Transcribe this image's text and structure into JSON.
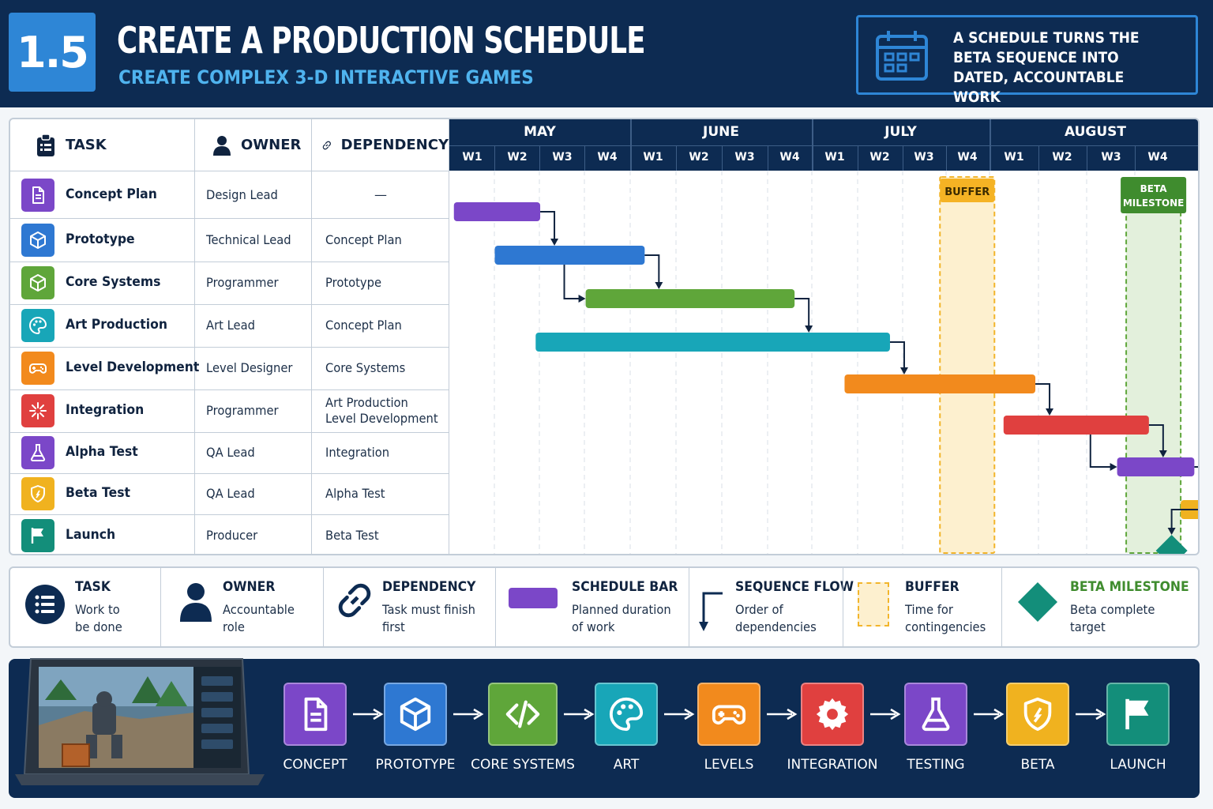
{
  "header": {
    "badge": "1.5",
    "title": "CREATE A PRODUCTION SCHEDULE",
    "subtitle": "CREATE COMPLEX 3-D INTERACTIVE GAMES",
    "note_line1": "A SCHEDULE TURNS THE",
    "note_line2": "BETA SEQUENCE INTO",
    "note_line3": "DATED, ACCOUNTABLE WORK",
    "note_icon": "calendar-icon"
  },
  "columns": {
    "task": "TASK",
    "owner": "OWNER",
    "dependency": "DEPENDENCY"
  },
  "months": [
    "MAY",
    "JUNE",
    "JULY",
    "AUGUST"
  ],
  "weeks": [
    "W1",
    "W2",
    "W3",
    "W4"
  ],
  "tasks": [
    {
      "name": "Concept Plan",
      "owner": "Design Lead",
      "dep1": "—",
      "dep2": "",
      "color": "#7b47c8",
      "icon": "document-icon"
    },
    {
      "name": "Prototype",
      "owner": "Technical Lead",
      "dep1": "Concept Plan",
      "dep2": "",
      "color": "#2e78d2",
      "icon": "cube-icon"
    },
    {
      "name": "Core Systems",
      "owner": "Programmer",
      "dep1": "Prototype",
      "dep2": "",
      "color": "#5fa63a",
      "icon": "cube-icon"
    },
    {
      "name": "Art Production",
      "owner": "Art Lead",
      "dep1": "Concept Plan",
      "dep2": "",
      "color": "#18a6b8",
      "icon": "palette-icon"
    },
    {
      "name": "Level Development",
      "owner": "Level Designer",
      "dep1": "Core Systems",
      "dep2": "",
      "color": "#f28a1d",
      "icon": "gamepad-icon"
    },
    {
      "name": "Integration",
      "owner": "Programmer",
      "dep1": "Art Production",
      "dep2": "Level Development",
      "color": "#e0403f",
      "icon": "spark-icon"
    },
    {
      "name": "Alpha Test",
      "owner": "QA Lead",
      "dep1": "Integration",
      "dep2": "",
      "color": "#7b47c8",
      "icon": "flask-icon"
    },
    {
      "name": "Beta Test",
      "owner": "QA Lead",
      "dep1": "Alpha Test",
      "dep2": "",
      "color": "#f0b21f",
      "icon": "shield-icon"
    },
    {
      "name": "Launch",
      "owner": "Producer",
      "dep1": "Beta Test",
      "dep2": "",
      "color": "#138e7a",
      "icon": "flag-icon"
    }
  ],
  "chart_data": {
    "type": "gantt",
    "time_unit": "week",
    "axis": [
      "May W1",
      "May W2",
      "May W3",
      "May W4",
      "June W1",
      "June W2",
      "June W3",
      "June W4",
      "July W1",
      "July W2",
      "July W3",
      "July W4",
      "August W1",
      "August W2",
      "August W3",
      "August W4"
    ],
    "bars": [
      {
        "task": "Concept Plan",
        "start_week": 1.1,
        "end_week": 3.0
      },
      {
        "task": "Prototype",
        "start_week": 2.0,
        "end_week": 5.3
      },
      {
        "task": "Core Systems",
        "start_week": 4.0,
        "end_week": 8.6
      },
      {
        "task": "Art Production",
        "start_week": 2.9,
        "end_week": 10.7
      },
      {
        "task": "Level Development",
        "start_week": 9.7,
        "end_week": 13.9
      },
      {
        "task": "Integration",
        "start_week": 13.2,
        "end_week": 16.4
      },
      {
        "task": "Alpha Test",
        "start_week": 15.7,
        "end_week": 17.4
      },
      {
        "task": "Beta Test",
        "start_week": 17.1,
        "end_week": 18.6
      }
    ],
    "buffer": {
      "label": "BUFFER",
      "start_week": 11.8,
      "end_week": 13.0
    },
    "milestone": {
      "label_line1": "BETA",
      "label_line2": "MILESTONE",
      "start_week": 15.9,
      "end_week": 17.1,
      "diamond_week": 16.9
    }
  },
  "legend": [
    {
      "title": "TASK",
      "desc1": "Work to",
      "desc2": "be done",
      "icon": "list-icon"
    },
    {
      "title": "OWNER",
      "desc1": "Accountable",
      "desc2": "role",
      "icon": "person-icon"
    },
    {
      "title": "DEPENDENCY",
      "desc1": "Task must finish",
      "desc2": "first",
      "icon": "link-icon"
    },
    {
      "title": "SCHEDULE BAR",
      "desc1": "Planned duration",
      "desc2": "of work",
      "icon": "bar-icon"
    },
    {
      "title": "SEQUENCE FLOW",
      "desc1": "Order of",
      "desc2": "dependencies",
      "icon": "elbow-arrow-icon"
    },
    {
      "title": "BUFFER",
      "desc1": "Time for",
      "desc2": "contingencies",
      "icon": "buffer-icon"
    },
    {
      "title": "BETA MILESTONE",
      "desc1": "Beta complete",
      "desc2": "target",
      "icon": "diamond-icon"
    }
  ],
  "flow": [
    {
      "label": "CONCEPT",
      "color": "#7b47c8",
      "icon": "document-icon"
    },
    {
      "label": "PROTOTYPE",
      "color": "#2e78d2",
      "icon": "cube-icon"
    },
    {
      "label": "CORE SYSTEMS",
      "color": "#5fa63a",
      "icon": "code-icon"
    },
    {
      "label": "ART",
      "color": "#18a6b8",
      "icon": "palette-icon"
    },
    {
      "label": "LEVELS",
      "color": "#f28a1d",
      "icon": "gamepad-icon"
    },
    {
      "label": "INTEGRATION",
      "color": "#e0403f",
      "icon": "gear-icon"
    },
    {
      "label": "TESTING",
      "color": "#7b47c8",
      "icon": "flask-icon"
    },
    {
      "label": "BETA",
      "color": "#f0b21f",
      "icon": "shield-icon"
    },
    {
      "label": "LAUNCH",
      "color": "#138e7a",
      "icon": "flag-icon"
    }
  ],
  "colors": {
    "navy": "#0d2b52",
    "accent": "#2e86d6",
    "buffer_fill": "#fdf0cf",
    "buffer_border": "#f2b52b",
    "milestone_fill": "#e3f0dc",
    "milestone_border": "#5fa63a",
    "milestone_label": "#3f8c2e"
  }
}
